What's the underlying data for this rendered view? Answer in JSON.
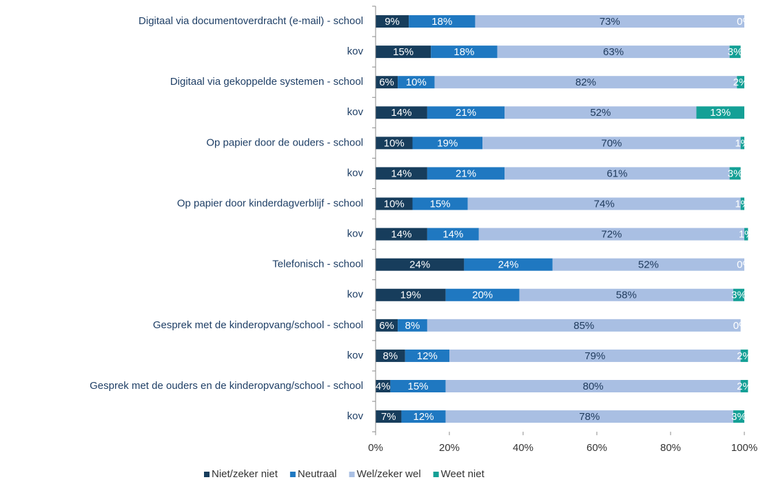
{
  "chart_data": {
    "type": "stacked_barh",
    "categories": [
      "Digitaal via documentoverdracht (e-mail) - school",
      "kov",
      "Digitaal via gekoppelde systemen - school",
      "kov",
      "Op papier door de ouders - school",
      "kov",
      "Op papier door kinderdagverblijf - school",
      "kov",
      "Telefonisch - school",
      "kov",
      "Gesprek met de kinderopvang/school - school",
      "kov",
      "Gesprek met de ouders en de kinderopvang/school - school",
      "kov"
    ],
    "series": [
      {
        "name": "Niet/zeker niet",
        "color": "#173d5c",
        "values": [
          9,
          15,
          6,
          14,
          10,
          14,
          10,
          14,
          24,
          19,
          6,
          8,
          4,
          7
        ],
        "value_labels": [
          "9%",
          "15%",
          "6%",
          "14%",
          "10%",
          "14%",
          "10%",
          "14%",
          "24%",
          "19%",
          "6%",
          "8%",
          "4%",
          "7%"
        ]
      },
      {
        "name": "Neutraal",
        "color": "#1f78c1",
        "values": [
          18,
          18,
          10,
          21,
          19,
          21,
          15,
          14,
          24,
          20,
          8,
          12,
          15,
          12
        ],
        "value_labels": [
          "18%",
          "18%",
          "10%",
          "21%",
          "19%",
          "21%",
          "15%",
          "14%",
          "24%",
          "20%",
          "8%",
          "12%",
          "15%",
          "12%"
        ]
      },
      {
        "name": "Wel/zeker wel",
        "color": "#a9bfe3",
        "values": [
          73,
          63,
          82,
          52,
          70,
          61,
          74,
          72,
          52,
          58,
          85,
          79,
          80,
          78
        ],
        "value_labels": [
          "73%",
          "63%",
          "82%",
          "52%",
          "70%",
          "61%",
          "74%",
          "72%",
          "52%",
          "58%",
          "85%",
          "79%",
          "80%",
          "78%"
        ]
      },
      {
        "name": "Weet niet",
        "color": "#14a096",
        "values": [
          0,
          3,
          2,
          13,
          1,
          3,
          1,
          1,
          0,
          3,
          0,
          2,
          2,
          3
        ],
        "value_labels": [
          "0%",
          "3%",
          "2%",
          "13%",
          "1%",
          "3%",
          "1%",
          "1%",
          "0%",
          "3%",
          "0%",
          "2%",
          "2%",
          "3%"
        ]
      }
    ],
    "xlim": [
      0,
      100
    ],
    "xticks": [
      {
        "value": 0,
        "label": "0%"
      },
      {
        "value": 20,
        "label": "20%"
      },
      {
        "value": 40,
        "label": "40%"
      },
      {
        "value": 60,
        "label": "60%"
      },
      {
        "value": 80,
        "label": "80%"
      },
      {
        "value": 100,
        "label": "100%"
      }
    ],
    "legend": "bottom"
  }
}
